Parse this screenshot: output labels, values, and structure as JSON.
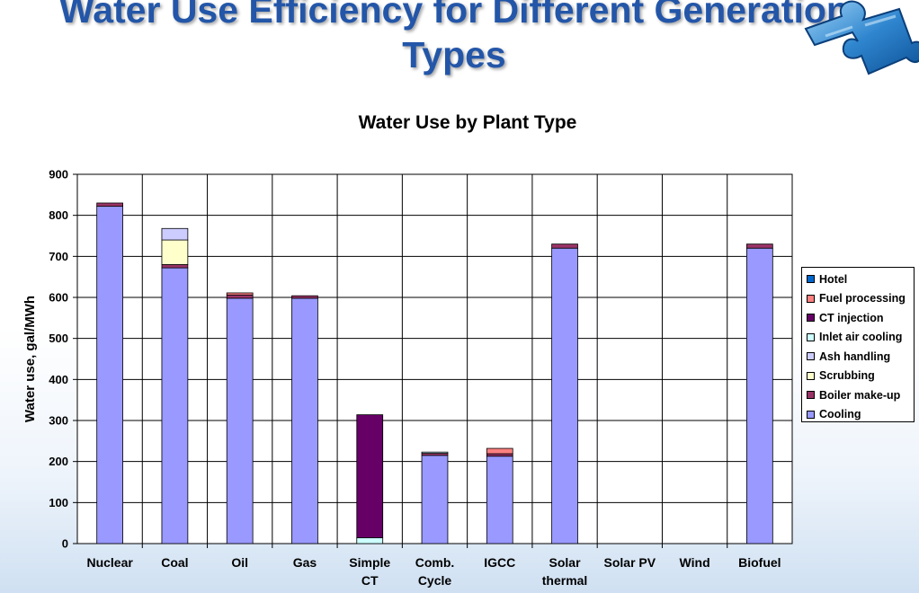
{
  "slide": {
    "title_line1": "Water Use Efficiency for Different Generation",
    "title_line2": "Types"
  },
  "chart_data": {
    "type": "bar",
    "stacked": true,
    "title": "Water Use by Plant Type",
    "xlabel": "",
    "ylabel": "Water use, gal/MWh",
    "ylim": [
      0,
      900
    ],
    "yticks": [
      0,
      100,
      200,
      300,
      400,
      500,
      600,
      700,
      800,
      900
    ],
    "grid": true,
    "legend_position": "right",
    "categories": [
      [
        "Nuclear"
      ],
      [
        "Coal"
      ],
      [
        "Oil"
      ],
      [
        "Gas"
      ],
      [
        "Simple",
        "CT"
      ],
      [
        "Comb.",
        "Cycle"
      ],
      [
        "IGCC"
      ],
      [
        "Solar",
        "thermal"
      ],
      [
        "Solar PV"
      ],
      [
        "Wind"
      ],
      [
        "Biofuel"
      ]
    ],
    "series": [
      {
        "name": "Cooling",
        "color": "#9999ff",
        "values": [
          822,
          672,
          598,
          598,
          0,
          215,
          213,
          720,
          0,
          0,
          720
        ]
      },
      {
        "name": "Boiler make-up",
        "color": "#993366",
        "values": [
          8,
          8,
          8,
          6,
          0,
          5,
          6,
          10,
          0,
          0,
          10
        ]
      },
      {
        "name": "Scrubbing",
        "color": "#ffffcc",
        "values": [
          0,
          60,
          0,
          0,
          0,
          0,
          0,
          0,
          0,
          0,
          0
        ]
      },
      {
        "name": "Ash handling",
        "color": "#ccccff",
        "values": [
          0,
          28,
          0,
          0,
          0,
          0,
          0,
          0,
          0,
          0,
          0
        ]
      },
      {
        "name": "Inlet air cooling",
        "color": "#ccffff",
        "values": [
          0,
          0,
          0,
          0,
          14,
          3,
          0,
          0,
          0,
          0,
          0
        ]
      },
      {
        "name": "CT injection",
        "color": "#660066",
        "values": [
          0,
          0,
          0,
          0,
          300,
          0,
          0,
          0,
          0,
          0,
          0
        ]
      },
      {
        "name": "Fuel processing",
        "color": "#ff8080",
        "values": [
          0,
          0,
          5,
          0,
          0,
          0,
          13,
          0,
          0,
          0,
          0
        ]
      },
      {
        "name": "Hotel",
        "color": "#0066cc",
        "values": [
          0,
          0,
          0,
          0,
          0,
          0,
          0,
          0,
          0,
          0,
          0
        ]
      }
    ],
    "legend_order": [
      "Hotel",
      "Fuel processing",
      "CT injection",
      "Inlet air cooling",
      "Ash handling",
      "Scrubbing",
      "Boiler make-up",
      "Cooling"
    ]
  }
}
